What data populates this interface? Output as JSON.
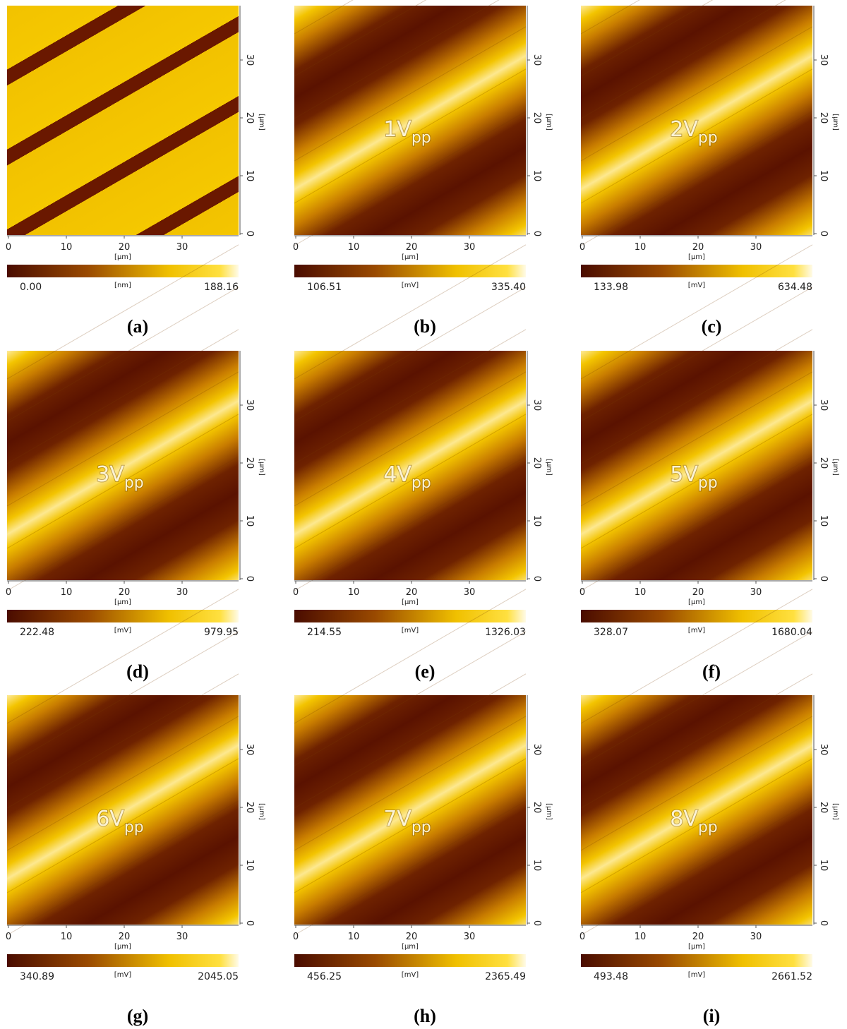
{
  "axis": {
    "ticks": [
      "0",
      "10",
      "20",
      "30"
    ],
    "unit": "[µm]"
  },
  "panels": [
    {
      "label": "(a)",
      "annotation": null,
      "colorbar": {
        "min": "0.00",
        "unit": "[nm]",
        "max": "188.16"
      }
    },
    {
      "label": "(b)",
      "annotation": {
        "text": "1V",
        "subscript": "pp"
      },
      "colorbar": {
        "min": "106.51",
        "unit": "[mV]",
        "max": "335.40"
      }
    },
    {
      "label": "(c)",
      "annotation": {
        "text": "2V",
        "subscript": "pp"
      },
      "colorbar": {
        "min": "133.98",
        "unit": "[mV]",
        "max": "634.48"
      }
    },
    {
      "label": "(d)",
      "annotation": {
        "text": "3V",
        "subscript": "pp"
      },
      "colorbar": {
        "min": "222.48",
        "unit": "[mV]",
        "max": "979.95"
      }
    },
    {
      "label": "(e)",
      "annotation": {
        "text": "4V",
        "subscript": "pp"
      },
      "colorbar": {
        "min": "214.55",
        "unit": "[mV]",
        "max": "1326.03"
      }
    },
    {
      "label": "(f)",
      "annotation": {
        "text": "5V",
        "subscript": "pp"
      },
      "colorbar": {
        "min": "328.07",
        "unit": "[mV]",
        "max": "1680.04"
      }
    },
    {
      "label": "(g)",
      "annotation": {
        "text": "6V",
        "subscript": "pp"
      },
      "colorbar": {
        "min": "340.89",
        "unit": "[mV]",
        "max": "2045.05"
      }
    },
    {
      "label": "(h)",
      "annotation": {
        "text": "7V",
        "subscript": "pp"
      },
      "colorbar": {
        "min": "456.25",
        "unit": "[mV]",
        "max": "2365.49"
      }
    },
    {
      "label": "(i)",
      "annotation": {
        "text": "8V",
        "subscript": "pp"
      },
      "colorbar": {
        "min": "493.48",
        "unit": "[mV]",
        "max": "2661.52"
      }
    }
  ]
}
